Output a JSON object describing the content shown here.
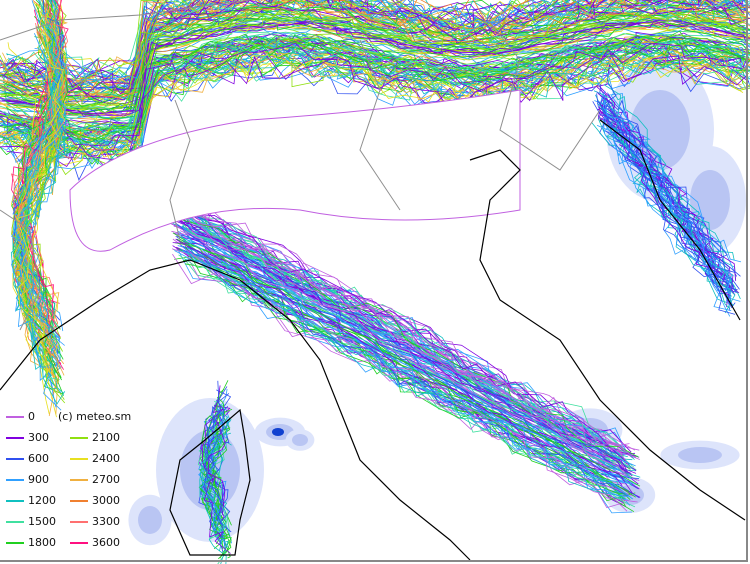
{
  "credit": "(c) meteo.sm",
  "legend": [
    {
      "label": "0",
      "color": "#c060e0"
    },
    {
      "label": "300",
      "color": "#8000e0"
    },
    {
      "label": "600",
      "color": "#3050f0"
    },
    {
      "label": "900",
      "color": "#30a0ff"
    },
    {
      "label": "1200",
      "color": "#10c0c0"
    },
    {
      "label": "1500",
      "color": "#40e0a0"
    },
    {
      "label": "1800",
      "color": "#20d020"
    },
    {
      "label": "2100",
      "color": "#90e010"
    },
    {
      "label": "2400",
      "color": "#e8e020"
    },
    {
      "label": "2700",
      "color": "#f0b040"
    },
    {
      "label": "3000",
      "color": "#f08030"
    },
    {
      "label": "3300",
      "color": "#ff7070"
    },
    {
      "label": "3600",
      "color": "#ff1080"
    }
  ],
  "colors": {
    "coast": "#000000",
    "border": "#909090",
    "precip": "#3060e0"
  }
}
